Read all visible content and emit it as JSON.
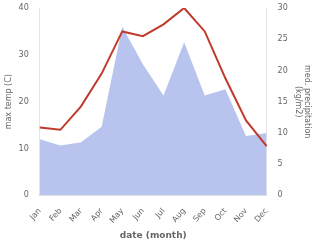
{
  "chart_data": {
    "type": "line",
    "categories": [
      "Jan",
      "Feb",
      "Mar",
      "Apr",
      "May",
      "Jun",
      "Jul",
      "Aug",
      "Sep",
      "Oct",
      "Nov",
      "Dec"
    ],
    "series": [
      {
        "type": "area",
        "axis": "y2",
        "color": "#b8c4ee",
        "values": [
          9.0,
          8.0,
          8.5,
          11.0,
          27.0,
          21.0,
          16.0,
          24.5,
          16.0,
          17.0,
          9.5,
          10.0
        ]
      },
      {
        "type": "line",
        "color": "#c0392b",
        "values": [
          14.5,
          14.0,
          19.0,
          26.0,
          35.0,
          34.0,
          36.5,
          40.0,
          35.0,
          25.0,
          16.0,
          10.5
        ]
      }
    ],
    "xlabel": "date (month)",
    "ylabel": "max temp (C)",
    "y2label": "med. precipitation\n(kg/m2)",
    "ylim": [
      0,
      40
    ],
    "yticks": [
      0,
      10,
      20,
      30,
      40
    ],
    "y2lim": [
      0,
      30
    ],
    "y2ticks": [
      0,
      5,
      10,
      15,
      20,
      25,
      30
    ],
    "grid": false
  }
}
